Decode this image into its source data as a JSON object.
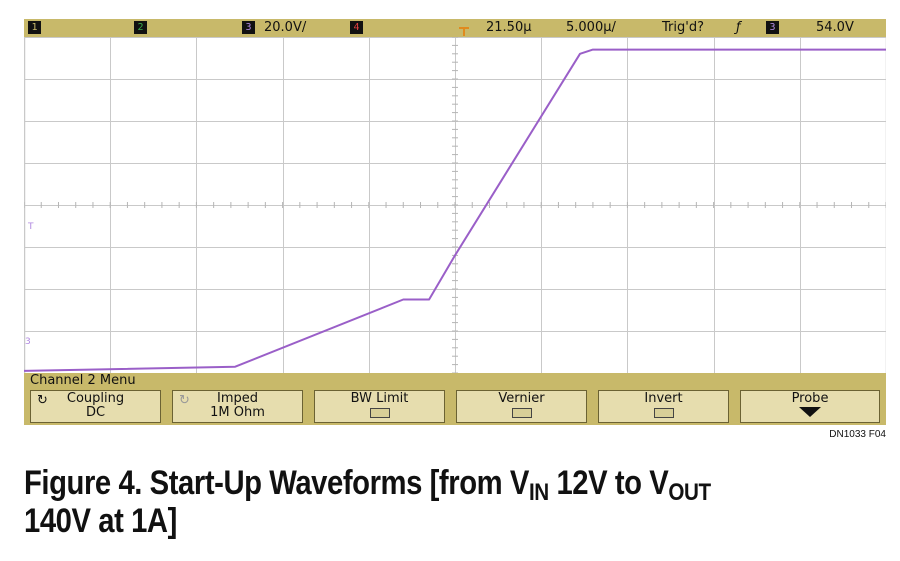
{
  "scope": {
    "channels": [
      "1",
      "2",
      "3",
      "4"
    ],
    "ch3_scale": "20.0V/",
    "time_offset": "21.50µ",
    "time_scale": "5.000µ/",
    "trigger_status": "Trig'd?",
    "trigger_slope_symbol": "ƒ",
    "trigger_channel": "3",
    "trigger_level": "54.0V",
    "menu_title": "Channel 2 Menu",
    "softkeys": [
      {
        "line1": "Coupling",
        "line2": "DC",
        "icon": "rotate-arrow-icon"
      },
      {
        "line1": "Imped",
        "line2": "1M Ohm",
        "icon": "rotate-arrow-icon"
      },
      {
        "line1": "BW Limit",
        "line2": ""
      },
      {
        "line1": "Vernier",
        "line2": ""
      },
      {
        "line1": "Invert",
        "line2": ""
      },
      {
        "line1": "Probe",
        "line2": ""
      }
    ],
    "ground_marker": "3",
    "trigger_marker": "T"
  },
  "figure_id": "DN1033 F04",
  "caption": {
    "lead": "Figure 4. Start-Up Waveforms [from V",
    "sub1": "IN",
    "mid": " 12V to V",
    "sub2": "OUT",
    "line2": "140V at 1A]"
  },
  "chart_data": {
    "type": "line",
    "grid": {
      "x_divisions": 10,
      "y_divisions": 8
    },
    "x_unit": "divisions",
    "y_unit": "divisions",
    "xlim": [
      0,
      10
    ],
    "ylim": [
      0,
      8
    ],
    "series": [
      {
        "color": "#9a5fc8",
        "x": [
          0,
          2.45,
          4.4,
          4.7,
          5.0,
          6.45,
          6.6,
          10
        ],
        "y": [
          0.05,
          0.15,
          1.75,
          1.75,
          2.8,
          7.6,
          7.7,
          7.7
        ]
      }
    ],
    "colors": {
      "trace": "#9a5fc8",
      "grid": "#c9c9c9",
      "bezel": "#c8b96a",
      "trigger": "#e08a1e"
    }
  }
}
